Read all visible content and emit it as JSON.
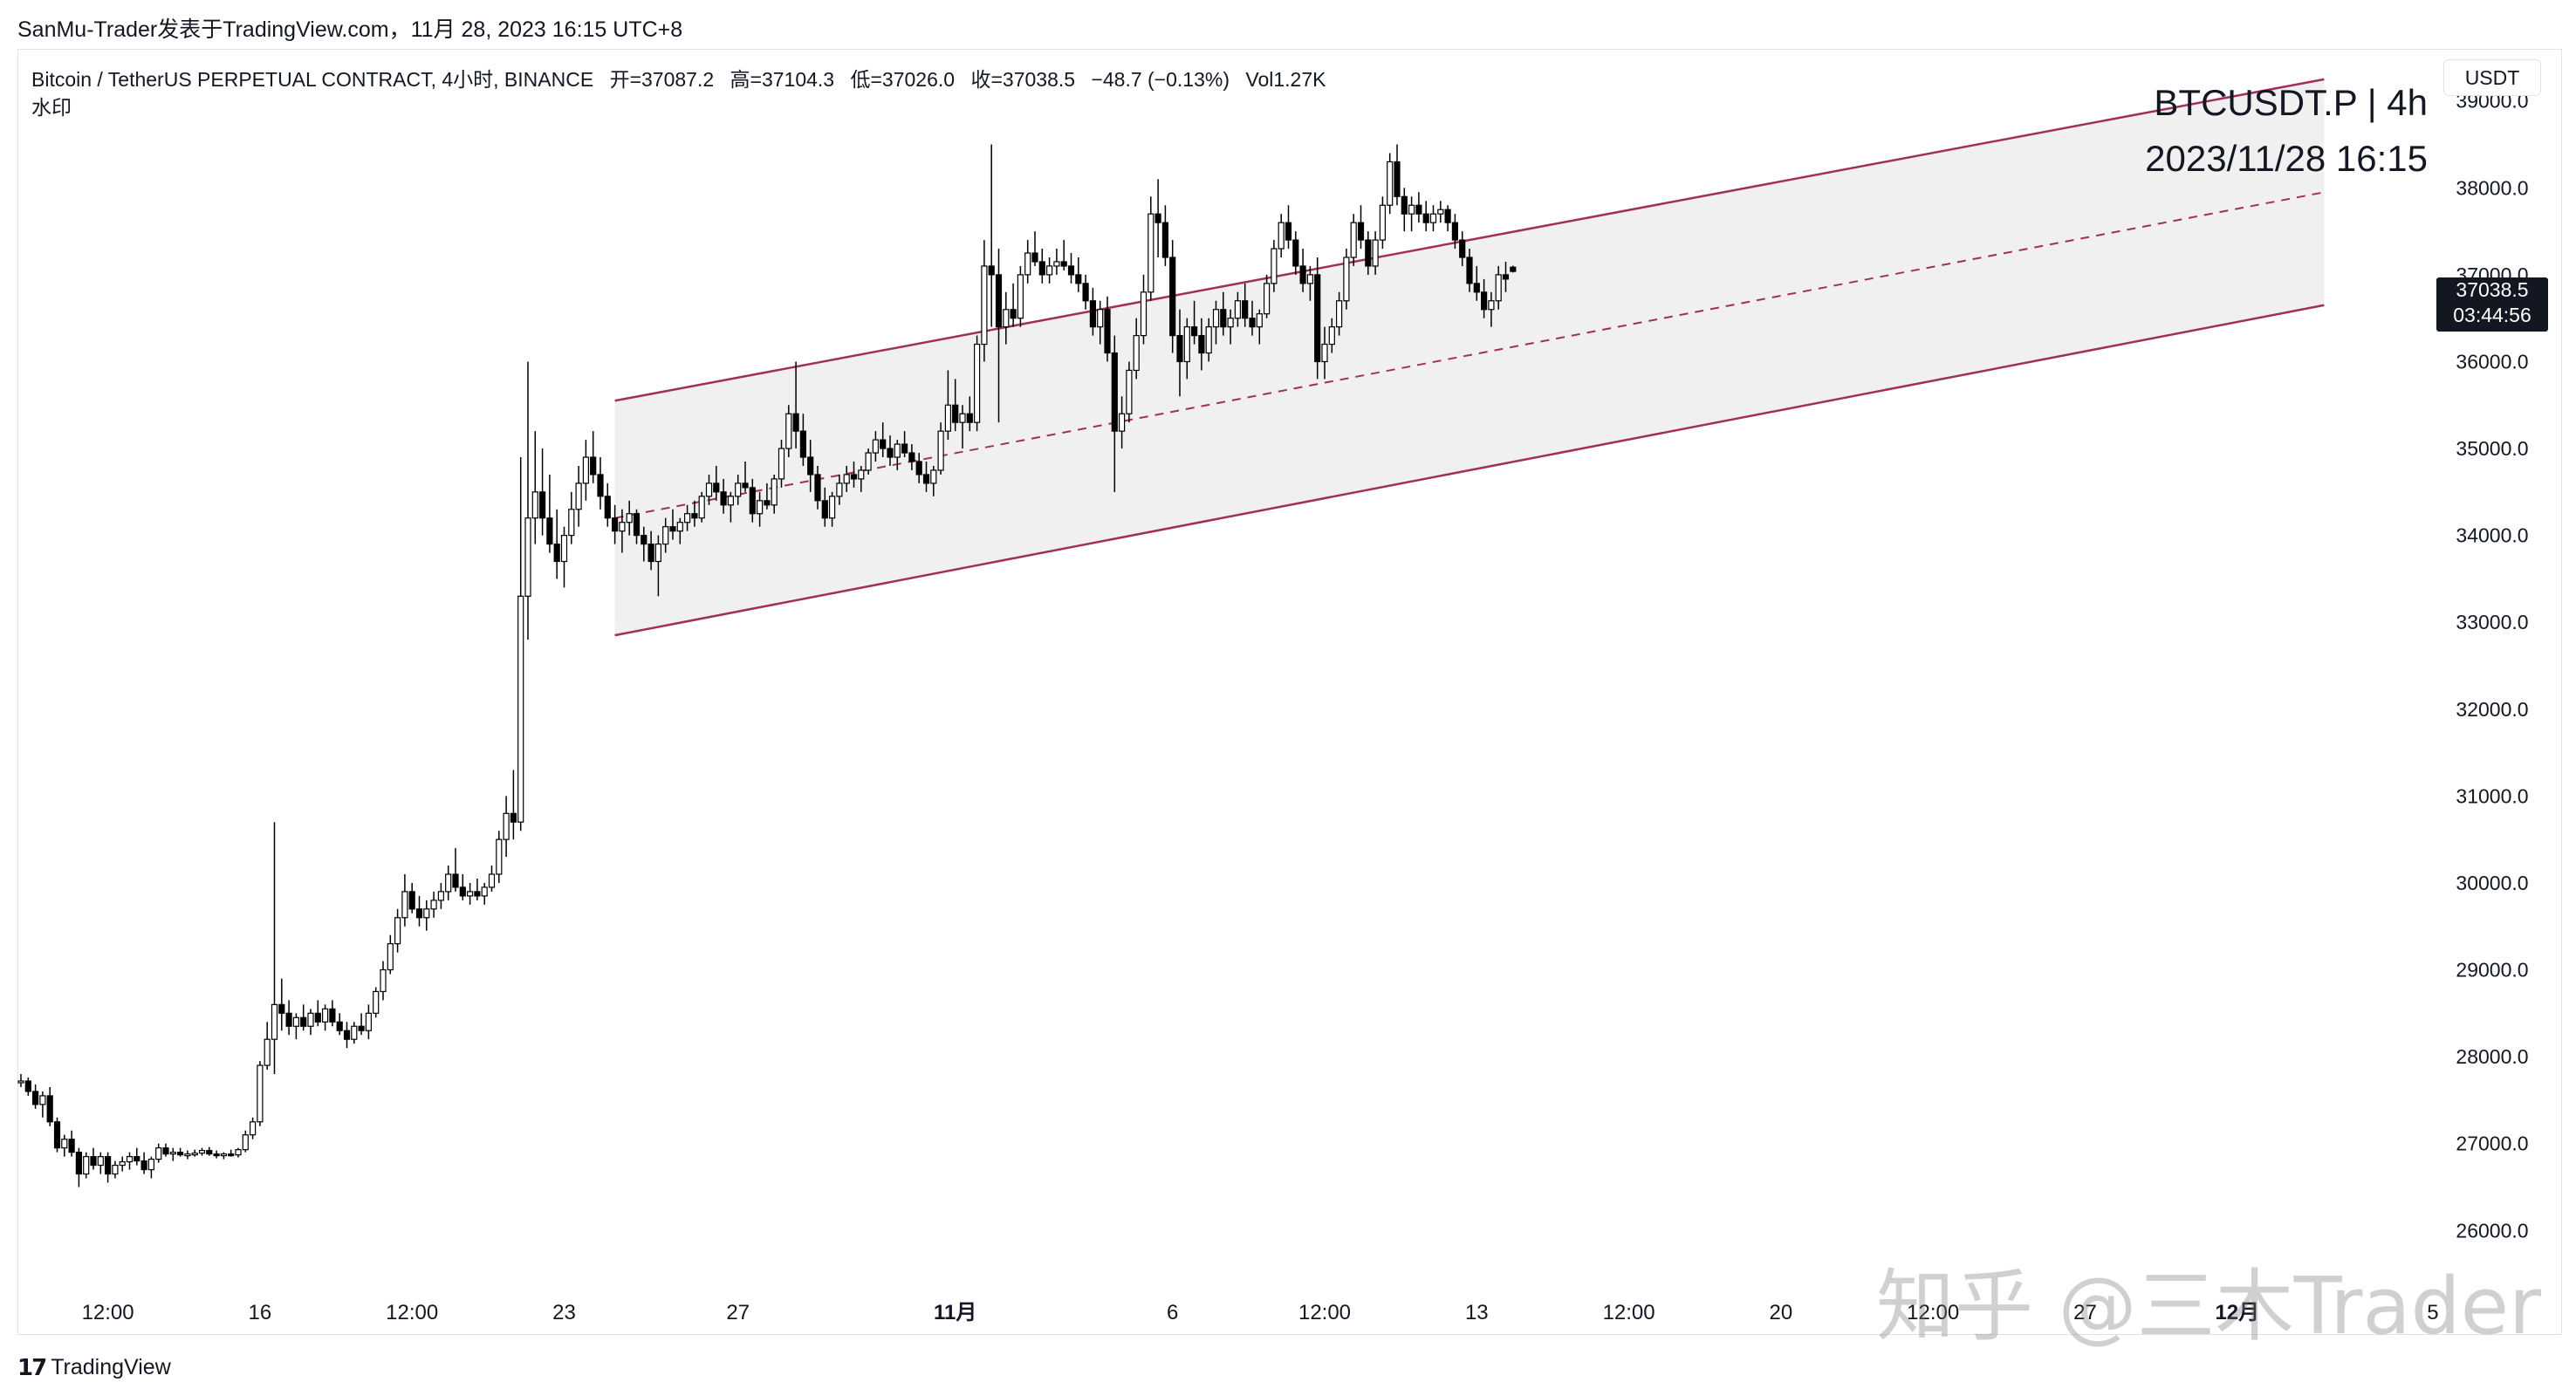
{
  "header": {
    "published": "SanMu-Trader发表于TradingView.com，11月 28, 2023 16:15 UTC+8"
  },
  "legend": {
    "symbol": "Bitcoin / TetherUS PERPETUAL CONTRACT, 4小时, BINANCE",
    "open": "开=37087.2",
    "high": "高=37104.3",
    "low": "低=37026.0",
    "close": "收=37038.5",
    "change": "−48.7 (−0.13%)",
    "volume": "Vol1.27K",
    "watermark_label": "水印"
  },
  "currency": "USDT",
  "watermark": {
    "line1": "BTCUSDT.P | 4h",
    "line2": "2023/11/28 16:15"
  },
  "price_tag": {
    "price": "37038.5",
    "countdown": "03:44:56"
  },
  "footer": {
    "brand": "TradingView",
    "overlay": "知乎 @三木Trader"
  },
  "colors": {
    "up": "#ffffff",
    "down": "#000000",
    "wick": "#000000",
    "channel": "#a0305a",
    "channel_fill": "#f0f0f0",
    "axis_text": "#131722"
  },
  "chart_data": {
    "type": "candlestick",
    "ylim": [
      25400,
      39600
    ],
    "y_ticks": [
      26000,
      27000,
      28000,
      29000,
      30000,
      31000,
      32000,
      33000,
      34000,
      35000,
      36000,
      37000,
      38000,
      39000
    ],
    "y_tick_labels": [
      "26000.0",
      "27000.0",
      "28000.0",
      "29000.0",
      "30000.0",
      "31000.0",
      "32000.0",
      "33000.0",
      "34000.0",
      "35000.0",
      "36000.0",
      "37000.0",
      "38000.0",
      "39000.0"
    ],
    "x_ticks": [
      {
        "label": "12:00",
        "i": 12
      },
      {
        "label": "16",
        "i": 33
      },
      {
        "label": "12:00",
        "i": 54
      },
      {
        "label": "23",
        "i": 75
      },
      {
        "label": "27",
        "i": 99
      },
      {
        "label": "11月",
        "i": 129
      },
      {
        "label": "6",
        "i": 159
      },
      {
        "label": "12:00",
        "i": 180
      },
      {
        "label": "13",
        "i": 201
      },
      {
        "label": "12:00",
        "i": 222
      },
      {
        "label": "20",
        "i": 243
      },
      {
        "label": "12:00",
        "i": 264
      },
      {
        "label": "27",
        "i": 285
      },
      {
        "label": "12月",
        "i": 306
      },
      {
        "label": "5",
        "i": 333
      }
    ],
    "channel": {
      "upper": {
        "i0": 82,
        "v0": 35550,
        "i1": 318,
        "v1": 39250
      },
      "lower": {
        "i0": 82,
        "v0": 32850,
        "i1": 318,
        "v1": 36650
      }
    },
    "candles": [
      [
        27700,
        27800,
        27650,
        27720
      ],
      [
        27720,
        27760,
        27550,
        27600
      ],
      [
        27600,
        27680,
        27400,
        27450
      ],
      [
        27450,
        27600,
        27300,
        27550
      ],
      [
        27550,
        27650,
        27200,
        27250
      ],
      [
        27250,
        27300,
        26900,
        26950
      ],
      [
        26950,
        27100,
        26850,
        27050
      ],
      [
        27050,
        27150,
        26850,
        26900
      ],
      [
        26900,
        26950,
        26500,
        26650
      ],
      [
        26650,
        26900,
        26600,
        26850
      ],
      [
        26850,
        26950,
        26700,
        26750
      ],
      [
        26750,
        26900,
        26650,
        26850
      ],
      [
        26850,
        26900,
        26550,
        26650
      ],
      [
        26650,
        26800,
        26600,
        26750
      ],
      [
        26750,
        26850,
        26680,
        26790
      ],
      [
        26790,
        26900,
        26700,
        26850
      ],
      [
        26850,
        26950,
        26750,
        26800
      ],
      [
        26800,
        26900,
        26650,
        26700
      ],
      [
        26700,
        26850,
        26600,
        26820
      ],
      [
        26820,
        27000,
        26780,
        26950
      ],
      [
        26950,
        27000,
        26850,
        26880
      ],
      [
        26880,
        26950,
        26800,
        26900
      ],
      [
        26900,
        26950,
        26850,
        26870
      ],
      [
        26870,
        26920,
        26820,
        26880
      ],
      [
        26880,
        26930,
        26850,
        26890
      ],
      [
        26890,
        26950,
        26860,
        26920
      ],
      [
        26920,
        26960,
        26860,
        26880
      ],
      [
        26880,
        26920,
        26830,
        26860
      ],
      [
        26860,
        26900,
        26820,
        26880
      ],
      [
        26880,
        26930,
        26850,
        26870
      ],
      [
        26870,
        26950,
        26840,
        26930
      ],
      [
        26930,
        27150,
        26900,
        27100
      ],
      [
        27100,
        27300,
        27050,
        27250
      ],
      [
        27250,
        27950,
        27200,
        27900
      ],
      [
        27900,
        28400,
        27850,
        28200
      ],
      [
        28200,
        30700,
        27800,
        28600
      ],
      [
        28600,
        28900,
        28300,
        28500
      ],
      [
        28500,
        28650,
        28250,
        28350
      ],
      [
        28350,
        28500,
        28200,
        28450
      ],
      [
        28450,
        28600,
        28300,
        28350
      ],
      [
        28350,
        28550,
        28250,
        28500
      ],
      [
        28500,
        28650,
        28350,
        28400
      ],
      [
        28400,
        28600,
        28300,
        28550
      ],
      [
        28550,
        28650,
        28350,
        28400
      ],
      [
        28400,
        28500,
        28250,
        28300
      ],
      [
        28300,
        28400,
        28100,
        28200
      ],
      [
        28200,
        28400,
        28150,
        28350
      ],
      [
        28350,
        28500,
        28250,
        28300
      ],
      [
        28300,
        28600,
        28200,
        28500
      ],
      [
        28500,
        28800,
        28450,
        28750
      ],
      [
        28750,
        29100,
        28650,
        29000
      ],
      [
        29000,
        29400,
        28950,
        29300
      ],
      [
        29300,
        29700,
        29200,
        29600
      ],
      [
        29600,
        30100,
        29500,
        29900
      ],
      [
        29900,
        30000,
        29650,
        29700
      ],
      [
        29700,
        29850,
        29500,
        29600
      ],
      [
        29600,
        29800,
        29450,
        29700
      ],
      [
        29700,
        29900,
        29600,
        29800
      ],
      [
        29800,
        30000,
        29700,
        29900
      ],
      [
        29900,
        30200,
        29800,
        30100
      ],
      [
        30100,
        30400,
        29900,
        29950
      ],
      [
        29950,
        30100,
        29800,
        29850
      ],
      [
        29850,
        30000,
        29750,
        29900
      ],
      [
        29900,
        30050,
        29800,
        29850
      ],
      [
        29850,
        30000,
        29750,
        29950
      ],
      [
        29950,
        30200,
        29900,
        30100
      ],
      [
        30100,
        30600,
        30000,
        30500
      ],
      [
        30500,
        31000,
        30300,
        30800
      ],
      [
        30800,
        31300,
        30500,
        30700
      ],
      [
        30700,
        34900,
        30600,
        33300
      ],
      [
        33300,
        36000,
        32800,
        34200
      ],
      [
        34200,
        35200,
        33900,
        34500
      ],
      [
        34500,
        35000,
        34000,
        34200
      ],
      [
        34200,
        34700,
        33800,
        33900
      ],
      [
        33900,
        34300,
        33500,
        33700
      ],
      [
        33700,
        34100,
        33400,
        34000
      ],
      [
        34000,
        34500,
        33900,
        34300
      ],
      [
        34300,
        34800,
        34100,
        34600
      ],
      [
        34600,
        35100,
        34400,
        34900
      ],
      [
        34900,
        35200,
        34600,
        34700
      ],
      [
        34700,
        34900,
        34300,
        34450
      ],
      [
        34450,
        34600,
        34100,
        34200
      ],
      [
        34200,
        34350,
        33900,
        34050
      ],
      [
        34050,
        34300,
        33800,
        34150
      ],
      [
        34150,
        34400,
        34000,
        34250
      ],
      [
        34250,
        34300,
        33900,
        34000
      ],
      [
        34000,
        34100,
        33700,
        33900
      ],
      [
        33900,
        34050,
        33600,
        33700
      ],
      [
        33700,
        34000,
        33300,
        33900
      ],
      [
        33900,
        34200,
        33800,
        34100
      ],
      [
        34100,
        34300,
        33950,
        34050
      ],
      [
        34050,
        34200,
        33900,
        34150
      ],
      [
        34150,
        34350,
        34050,
        34250
      ],
      [
        34250,
        34400,
        34100,
        34200
      ],
      [
        34200,
        34500,
        34150,
        34450
      ],
      [
        34450,
        34700,
        34350,
        34600
      ],
      [
        34600,
        34800,
        34400,
        34500
      ],
      [
        34500,
        34650,
        34250,
        34350
      ],
      [
        34350,
        34500,
        34150,
        34450
      ],
      [
        34450,
        34700,
        34350,
        34600
      ],
      [
        34600,
        34850,
        34500,
        34550
      ],
      [
        34550,
        34650,
        34150,
        34250
      ],
      [
        34250,
        34500,
        34100,
        34400
      ],
      [
        34400,
        34600,
        34300,
        34350
      ],
      [
        34350,
        34700,
        34250,
        34650
      ],
      [
        34650,
        35100,
        34550,
        35000
      ],
      [
        35000,
        35500,
        34900,
        35400
      ],
      [
        35400,
        36000,
        35000,
        35200
      ],
      [
        35200,
        35400,
        34800,
        34900
      ],
      [
        34900,
        35100,
        34500,
        34700
      ],
      [
        34700,
        34800,
        34300,
        34400
      ],
      [
        34400,
        34550,
        34100,
        34200
      ],
      [
        34200,
        34500,
        34100,
        34450
      ],
      [
        34450,
        34700,
        34350,
        34600
      ],
      [
        34600,
        34800,
        34500,
        34700
      ],
      [
        34700,
        34850,
        34550,
        34650
      ],
      [
        34650,
        34800,
        34500,
        34750
      ],
      [
        34750,
        35000,
        34700,
        34950
      ],
      [
        34950,
        35200,
        34850,
        35100
      ],
      [
        35100,
        35300,
        34900,
        35000
      ],
      [
        35000,
        35150,
        34800,
        34900
      ],
      [
        34900,
        35100,
        34750,
        35050
      ],
      [
        35050,
        35200,
        34900,
        34950
      ],
      [
        34950,
        35050,
        34750,
        34850
      ],
      [
        34850,
        34950,
        34600,
        34700
      ],
      [
        34700,
        34850,
        34500,
        34600
      ],
      [
        34600,
        34800,
        34450,
        34750
      ],
      [
        34750,
        35300,
        34700,
        35200
      ],
      [
        35200,
        35900,
        35100,
        35500
      ],
      [
        35500,
        35800,
        35200,
        35300
      ],
      [
        35300,
        35500,
        35000,
        35400
      ],
      [
        35400,
        35600,
        35200,
        35300
      ],
      [
        35300,
        36300,
        35200,
        36200
      ],
      [
        36200,
        37400,
        36000,
        37100
      ],
      [
        37100,
        38500,
        36400,
        37000
      ],
      [
        37000,
        37300,
        35300,
        36400
      ],
      [
        36400,
        36800,
        36200,
        36600
      ],
      [
        36600,
        36900,
        36400,
        36500
      ],
      [
        36500,
        37100,
        36400,
        37000
      ],
      [
        37000,
        37400,
        36900,
        37250
      ],
      [
        37250,
        37500,
        37100,
        37150
      ],
      [
        37150,
        37300,
        36900,
        37000
      ],
      [
        37000,
        37200,
        36900,
        37100
      ],
      [
        37100,
        37300,
        37000,
        37150
      ],
      [
        37150,
        37400,
        37050,
        37100
      ],
      [
        37100,
        37250,
        36900,
        37000
      ],
      [
        37000,
        37200,
        36800,
        36900
      ],
      [
        36900,
        37000,
        36600,
        36700
      ],
      [
        36700,
        36850,
        36300,
        36400
      ],
      [
        36400,
        36700,
        36200,
        36600
      ],
      [
        36600,
        36750,
        36000,
        36100
      ],
      [
        36100,
        36300,
        34500,
        35200
      ],
      [
        35200,
        35600,
        35000,
        35400
      ],
      [
        35400,
        36000,
        35300,
        35900
      ],
      [
        35900,
        36500,
        35800,
        36300
      ],
      [
        36300,
        37000,
        36200,
        36800
      ],
      [
        36800,
        37900,
        36700,
        37700
      ],
      [
        37700,
        38100,
        37200,
        37600
      ],
      [
        37600,
        37800,
        37100,
        37200
      ],
      [
        37200,
        37400,
        36100,
        36300
      ],
      [
        36300,
        36600,
        35600,
        36000
      ],
      [
        36000,
        36500,
        35800,
        36400
      ],
      [
        36400,
        36700,
        36200,
        36300
      ],
      [
        36300,
        36500,
        35900,
        36100
      ],
      [
        36100,
        36500,
        36000,
        36400
      ],
      [
        36400,
        36700,
        36200,
        36600
      ],
      [
        36600,
        36800,
        36300,
        36400
      ],
      [
        36400,
        36600,
        36200,
        36500
      ],
      [
        36500,
        36800,
        36400,
        36700
      ],
      [
        36700,
        36900,
        36400,
        36500
      ],
      [
        36500,
        36700,
        36300,
        36400
      ],
      [
        36400,
        36600,
        36200,
        36550
      ],
      [
        36550,
        37000,
        36500,
        36900
      ],
      [
        36900,
        37400,
        36800,
        37300
      ],
      [
        37300,
        37700,
        37200,
        37600
      ],
      [
        37600,
        37800,
        37300,
        37400
      ],
      [
        37400,
        37500,
        37000,
        37100
      ],
      [
        37100,
        37300,
        36800,
        36900
      ],
      [
        36900,
        37100,
        36700,
        37000
      ],
      [
        37000,
        37200,
        35800,
        36000
      ],
      [
        36000,
        36400,
        35800,
        36200
      ],
      [
        36200,
        36500,
        36100,
        36400
      ],
      [
        36400,
        36800,
        36300,
        36700
      ],
      [
        36700,
        37300,
        36600,
        37200
      ],
      [
        37200,
        37700,
        37100,
        37600
      ],
      [
        37600,
        37800,
        37300,
        37400
      ],
      [
        37400,
        37500,
        37000,
        37100
      ],
      [
        37100,
        37500,
        37000,
        37400
      ],
      [
        37400,
        37900,
        37300,
        37800
      ],
      [
        37800,
        38400,
        37700,
        38300
      ],
      [
        38300,
        38500,
        37800,
        37900
      ],
      [
        37900,
        38000,
        37500,
        37700
      ],
      [
        37700,
        37900,
        37500,
        37800
      ],
      [
        37800,
        37950,
        37600,
        37700
      ],
      [
        37700,
        37850,
        37500,
        37600
      ],
      [
        37600,
        37800,
        37500,
        37700
      ],
      [
        37700,
        37850,
        37600,
        37750
      ],
      [
        37750,
        37800,
        37500,
        37600
      ],
      [
        37600,
        37700,
        37300,
        37400
      ],
      [
        37400,
        37500,
        37100,
        37200
      ],
      [
        37200,
        37300,
        36800,
        36900
      ],
      [
        36900,
        37100,
        36700,
        36800
      ],
      [
        36800,
        36950,
        36500,
        36600
      ],
      [
        36600,
        36800,
        36400,
        36700
      ],
      [
        36700,
        37100,
        36600,
        37000
      ],
      [
        37000,
        37150,
        36800,
        36950
      ],
      [
        37087.2,
        37104.3,
        37026.0,
        37038.5
      ]
    ]
  }
}
